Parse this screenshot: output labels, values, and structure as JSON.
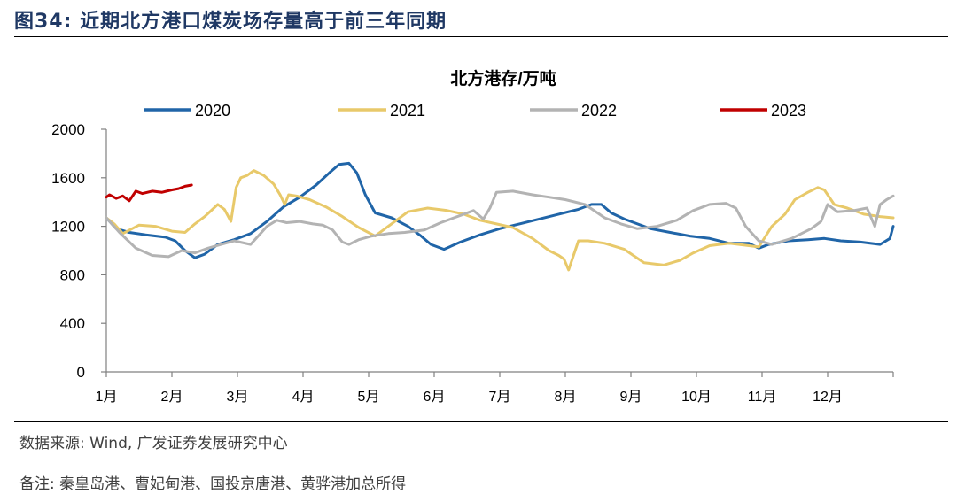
{
  "figure": {
    "title": "图34:  近期北方港口煤炭场存量高于前三年同期",
    "source": "数据来源:  Wind, 广发证券发展研究中心",
    "remark": "备注:  秦皇岛港、曹妃甸港、国投京唐港、黄骅港加总所得"
  },
  "chart_data": {
    "type": "line",
    "title": "北方港存/万吨",
    "xlabel": "",
    "ylabel": "",
    "ylim": [
      0,
      2000
    ],
    "yticks": [
      0,
      400,
      800,
      1200,
      1600,
      2000
    ],
    "xlim": [
      1,
      13
    ],
    "xticks": [
      1,
      2,
      3,
      4,
      5,
      6,
      7,
      8,
      9,
      10,
      11,
      12
    ],
    "xtick_labels": [
      "1月",
      "2月",
      "3月",
      "4月",
      "5月",
      "6月",
      "7月",
      "8月",
      "9月",
      "10月",
      "11月",
      "12月"
    ],
    "legend_position": "top",
    "grid": false,
    "series": [
      {
        "name": "2020",
        "color": "#2065a8",
        "x": [
          1.0,
          1.15,
          1.35,
          1.6,
          1.9,
          2.05,
          2.2,
          2.35,
          2.5,
          2.7,
          2.95,
          3.2,
          3.45,
          3.7,
          3.95,
          4.2,
          4.4,
          4.55,
          4.7,
          4.82,
          4.95,
          5.1,
          5.35,
          5.6,
          5.8,
          5.95,
          6.15,
          6.4,
          6.7,
          7.0,
          7.3,
          7.6,
          7.9,
          8.2,
          8.4,
          8.55,
          8.7,
          8.9,
          9.1,
          9.3,
          9.6,
          9.9,
          10.2,
          10.5,
          10.8,
          10.95,
          11.1,
          11.4,
          11.7,
          11.95,
          12.2,
          12.5,
          12.8,
          12.95,
          13.0
        ],
        "values": [
          1270,
          1180,
          1150,
          1130,
          1110,
          1080,
          1000,
          940,
          970,
          1050,
          1090,
          1140,
          1240,
          1360,
          1440,
          1540,
          1640,
          1710,
          1720,
          1640,
          1460,
          1310,
          1270,
          1200,
          1120,
          1050,
          1010,
          1070,
          1130,
          1180,
          1220,
          1260,
          1300,
          1340,
          1380,
          1380,
          1310,
          1260,
          1220,
          1180,
          1150,
          1120,
          1100,
          1060,
          1060,
          1020,
          1050,
          1080,
          1090,
          1100,
          1080,
          1070,
          1050,
          1100,
          1200
        ]
      },
      {
        "name": "2021",
        "color": "#e8c96a",
        "x": [
          1.0,
          1.12,
          1.25,
          1.5,
          1.75,
          2.0,
          2.2,
          2.35,
          2.5,
          2.7,
          2.8,
          2.9,
          2.98,
          3.05,
          3.15,
          3.25,
          3.4,
          3.55,
          3.65,
          3.72,
          3.78,
          3.9,
          4.1,
          4.35,
          4.6,
          4.85,
          5.1,
          5.3,
          5.6,
          5.9,
          6.2,
          6.45,
          6.7,
          6.95,
          7.2,
          7.5,
          7.75,
          7.9,
          7.98,
          8.05,
          8.15,
          8.2,
          8.35,
          8.6,
          8.9,
          9.2,
          9.5,
          9.75,
          9.95,
          10.2,
          10.5,
          10.8,
          10.95,
          11.15,
          11.35,
          11.5,
          11.7,
          11.85,
          11.95,
          12.1,
          12.3,
          12.55,
          12.8,
          13.0
        ],
        "values": [
          1270,
          1220,
          1140,
          1210,
          1200,
          1160,
          1150,
          1220,
          1280,
          1380,
          1340,
          1240,
          1520,
          1600,
          1620,
          1660,
          1620,
          1550,
          1460,
          1380,
          1460,
          1450,
          1420,
          1360,
          1280,
          1190,
          1120,
          1200,
          1320,
          1350,
          1330,
          1300,
          1250,
          1220,
          1190,
          1100,
          1000,
          960,
          930,
          840,
          1000,
          1080,
          1080,
          1060,
          1010,
          900,
          880,
          920,
          980,
          1040,
          1060,
          1040,
          1030,
          1200,
          1300,
          1420,
          1480,
          1520,
          1500,
          1380,
          1350,
          1300,
          1280,
          1270
        ]
      },
      {
        "name": "2022",
        "color": "#b3b3b3",
        "x": [
          1.0,
          1.2,
          1.45,
          1.7,
          1.95,
          2.15,
          2.35,
          2.55,
          2.75,
          2.95,
          3.2,
          3.45,
          3.6,
          3.75,
          3.95,
          4.15,
          4.3,
          4.45,
          4.6,
          4.7,
          4.85,
          5.05,
          5.3,
          5.55,
          5.85,
          6.1,
          6.4,
          6.6,
          6.75,
          6.85,
          6.95,
          7.2,
          7.5,
          7.75,
          8.0,
          8.3,
          8.6,
          8.85,
          9.1,
          9.4,
          9.7,
          9.95,
          10.2,
          10.45,
          10.6,
          10.75,
          10.95,
          11.15,
          11.45,
          11.75,
          11.9,
          12.0,
          12.15,
          12.4,
          12.6,
          12.72,
          12.8,
          12.9,
          13.0
        ],
        "values": [
          1270,
          1150,
          1020,
          960,
          950,
          1000,
          980,
          1020,
          1050,
          1080,
          1050,
          1200,
          1250,
          1230,
          1240,
          1220,
          1210,
          1170,
          1070,
          1050,
          1090,
          1120,
          1140,
          1150,
          1170,
          1230,
          1290,
          1330,
          1260,
          1350,
          1480,
          1490,
          1460,
          1440,
          1420,
          1380,
          1270,
          1220,
          1180,
          1200,
          1250,
          1330,
          1380,
          1390,
          1350,
          1200,
          1080,
          1050,
          1100,
          1180,
          1240,
          1380,
          1320,
          1330,
          1350,
          1200,
          1380,
          1420,
          1450
        ]
      },
      {
        "name": "2023",
        "color": "#c00000",
        "x": [
          1.0,
          1.05,
          1.15,
          1.25,
          1.35,
          1.45,
          1.55,
          1.7,
          1.85,
          2.0,
          2.1,
          2.2,
          2.3
        ],
        "values": [
          1440,
          1460,
          1430,
          1450,
          1410,
          1490,
          1470,
          1490,
          1480,
          1500,
          1510,
          1530,
          1540
        ]
      }
    ]
  }
}
